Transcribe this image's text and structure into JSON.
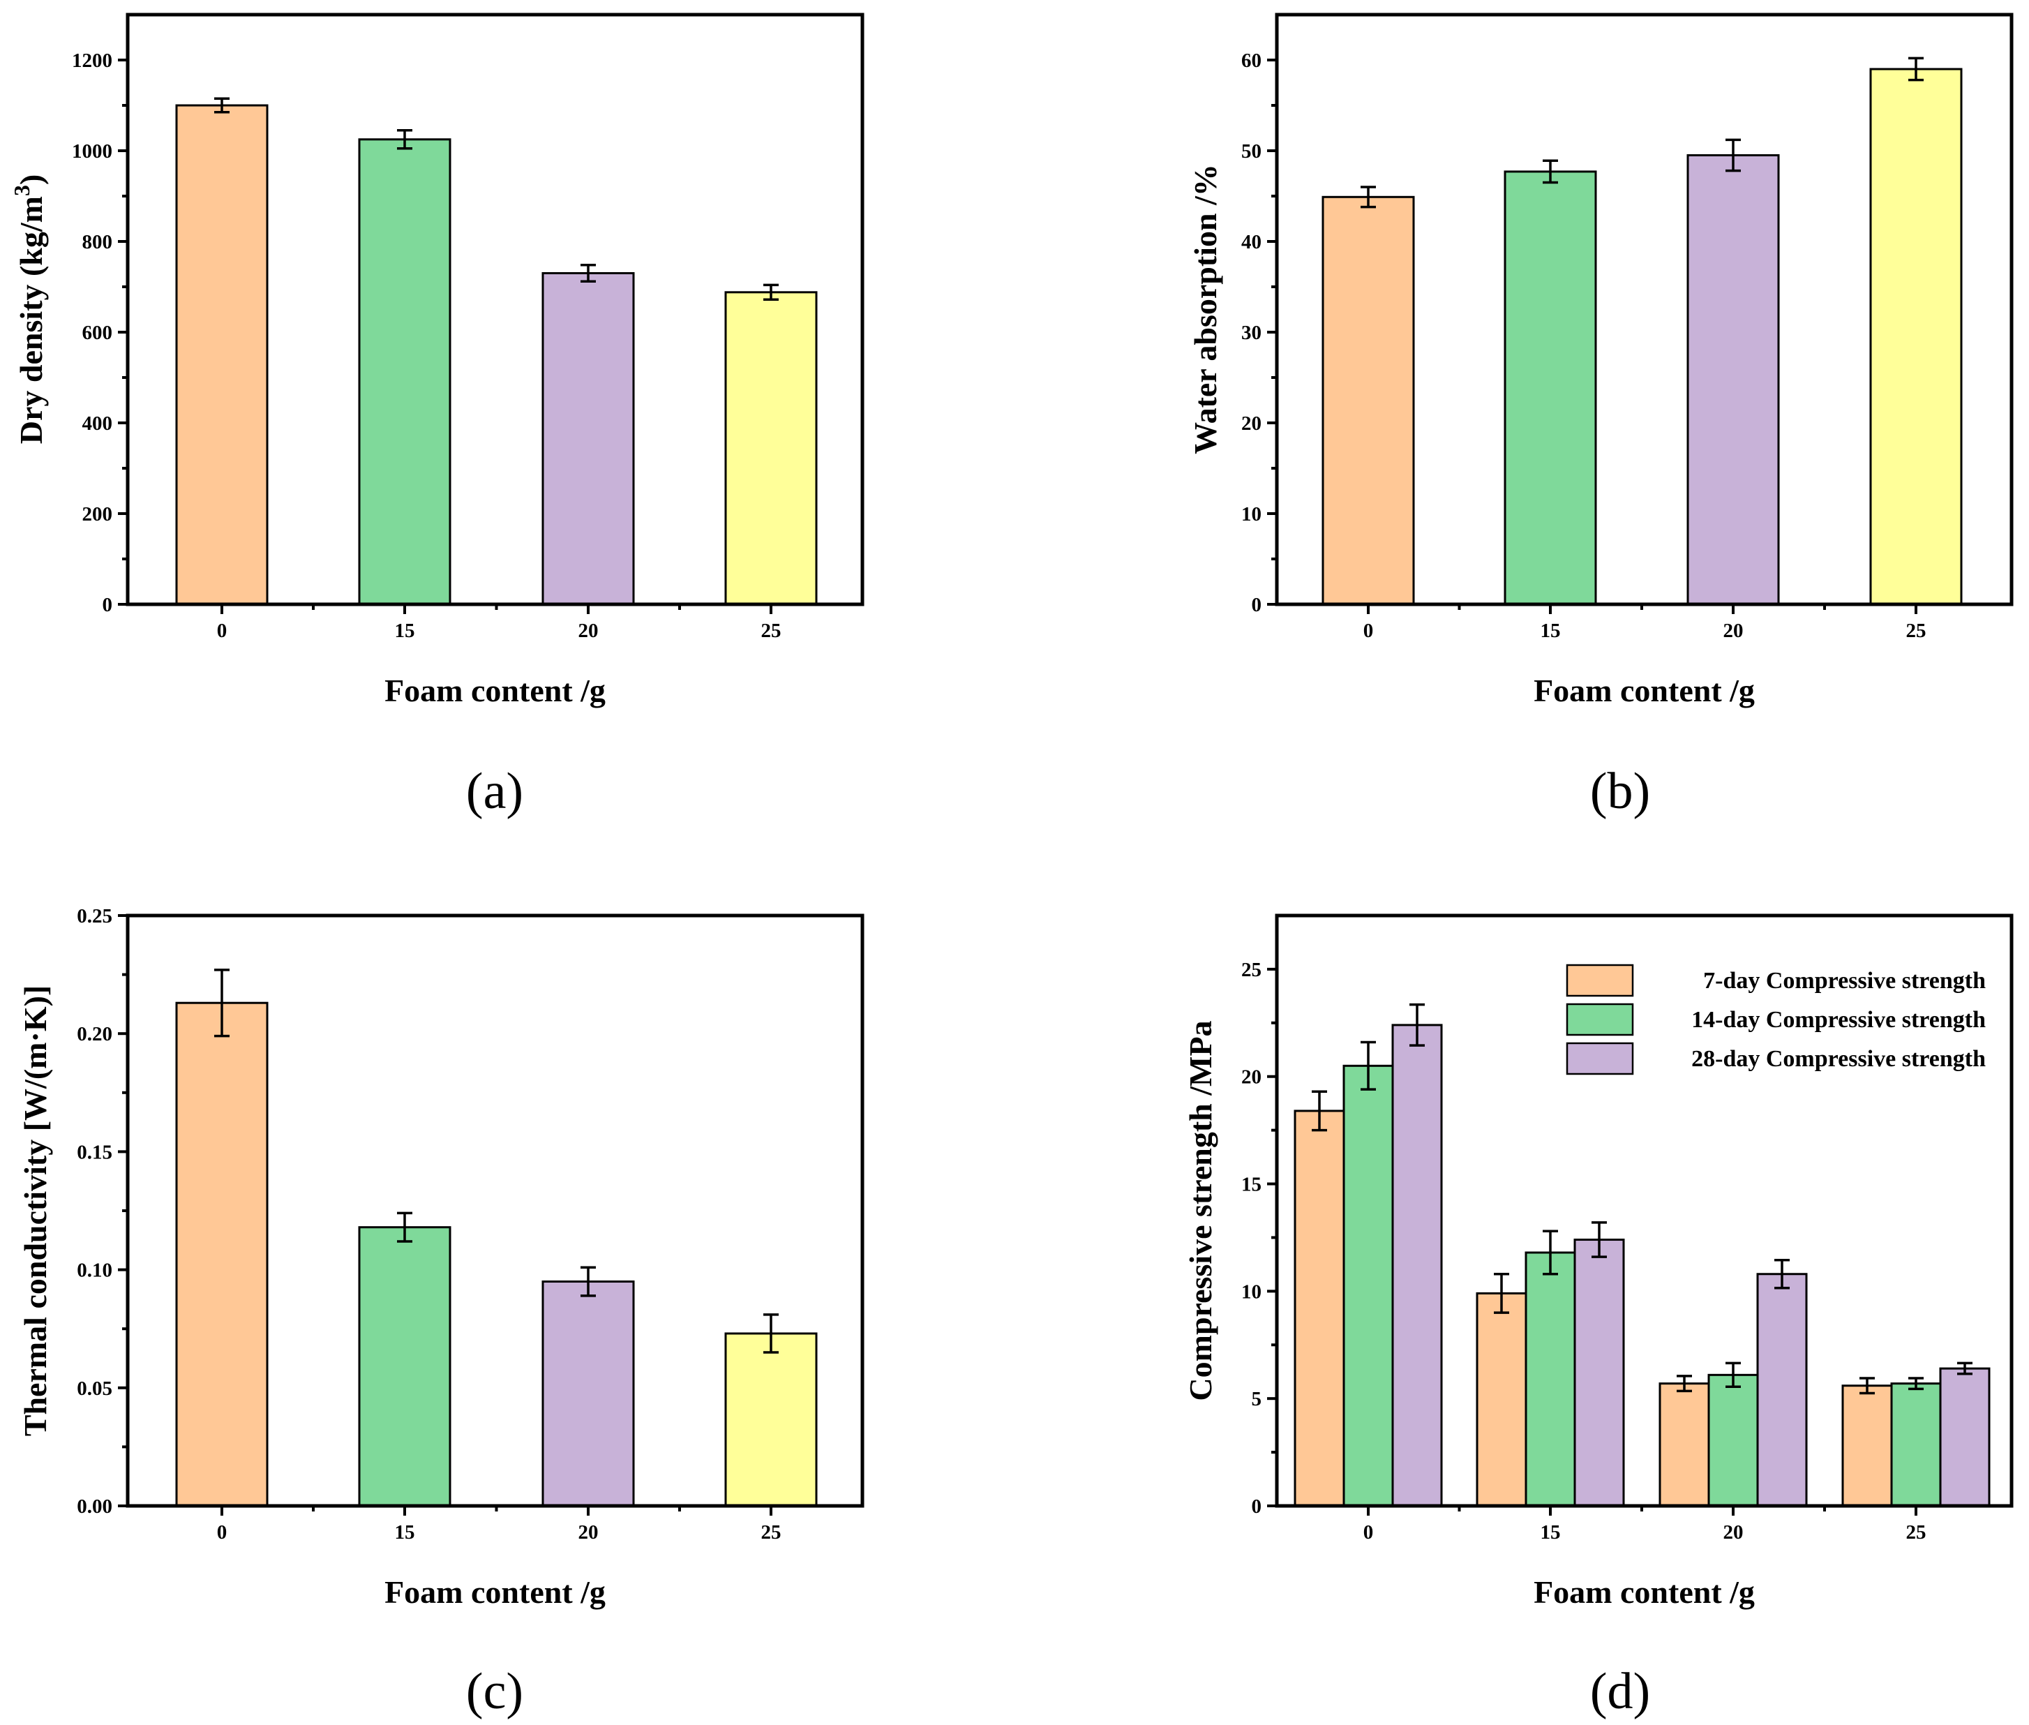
{
  "colors": {
    "orange": "#FFC896",
    "green": "#7FD99A",
    "purple": "#C8B2D8",
    "yellow": "#FFFF99",
    "stroke": "#000000"
  },
  "chart_data": [
    {
      "id": "a",
      "type": "bar",
      "panel_label": "(a)",
      "title": "",
      "categories": [
        "0",
        "15",
        "20",
        "25"
      ],
      "values": [
        1100,
        1025,
        730,
        688
      ],
      "errors": [
        15,
        20,
        18,
        16
      ],
      "bar_colors": [
        "orange",
        "green",
        "purple",
        "yellow"
      ],
      "xlabel": "Foam content /g",
      "ylabel_parts": [
        "Dry density  (kg/m",
        "3",
        ")"
      ],
      "ylim": [
        0,
        1300
      ],
      "yticks": [
        0,
        200,
        400,
        600,
        800,
        1000,
        1200
      ],
      "ytick_labels": [
        "0",
        "200",
        "400",
        "600",
        "800",
        "1000",
        "1200"
      ],
      "grid": false
    },
    {
      "id": "b",
      "type": "bar",
      "panel_label": "(b)",
      "title": "",
      "categories": [
        "0",
        "15",
        "20",
        "25"
      ],
      "values": [
        44.9,
        47.7,
        49.5,
        59.0
      ],
      "errors": [
        1.1,
        1.2,
        1.7,
        1.2
      ],
      "bar_colors": [
        "orange",
        "green",
        "purple",
        "yellow"
      ],
      "xlabel": "Foam content /g",
      "ylabel_parts": [
        "Water absorption /%"
      ],
      "ylim": [
        0,
        65
      ],
      "yticks": [
        0,
        10,
        20,
        30,
        40,
        50,
        60
      ],
      "ytick_labels": [
        "0",
        "10",
        "20",
        "30",
        "40",
        "50",
        "60"
      ],
      "grid": false
    },
    {
      "id": "c",
      "type": "bar",
      "panel_label": "(c)",
      "title": "",
      "categories": [
        "0",
        "15",
        "20",
        "25"
      ],
      "values": [
        0.213,
        0.118,
        0.095,
        0.073
      ],
      "errors": [
        0.014,
        0.006,
        0.006,
        0.008
      ],
      "bar_colors": [
        "orange",
        "green",
        "purple",
        "yellow"
      ],
      "xlabel": "Foam content /g",
      "ylabel_parts": [
        "Thermal conductivity [W/(m·K)]"
      ],
      "ylim": [
        0,
        0.25
      ],
      "yticks": [
        0,
        0.05,
        0.1,
        0.15,
        0.2,
        0.25
      ],
      "ytick_labels": [
        "0.00",
        "0.05",
        "0.10",
        "0.15",
        "0.20",
        "0.25"
      ],
      "grid": false
    },
    {
      "id": "d",
      "type": "bar",
      "panel_label": "(d)",
      "title": "",
      "categories": [
        "0",
        "15",
        "20",
        "25"
      ],
      "series": [
        {
          "name": "7-day Compressive strength",
          "color": "orange",
          "values": [
            18.4,
            9.9,
            5.7,
            5.6
          ],
          "errors": [
            0.9,
            0.9,
            0.35,
            0.35
          ]
        },
        {
          "name": "14-day Compressive strength",
          "color": "green",
          "values": [
            20.5,
            11.8,
            6.1,
            5.7
          ],
          "errors": [
            1.1,
            1.0,
            0.55,
            0.25
          ]
        },
        {
          "name": "28-day Compressive strength",
          "color": "purple",
          "values": [
            22.4,
            12.4,
            10.8,
            6.4
          ],
          "errors": [
            0.95,
            0.8,
            0.65,
            0.25
          ]
        }
      ],
      "xlabel": "Foam content /g",
      "ylabel_parts": [
        "Compressive strength /MPa"
      ],
      "ylim": [
        0,
        27.5
      ],
      "yticks": [
        0,
        5,
        10,
        15,
        20,
        25
      ],
      "ytick_labels": [
        "0",
        "5",
        "10",
        "15",
        "20",
        "25"
      ],
      "legend_position": "top-right",
      "grid": false
    }
  ]
}
